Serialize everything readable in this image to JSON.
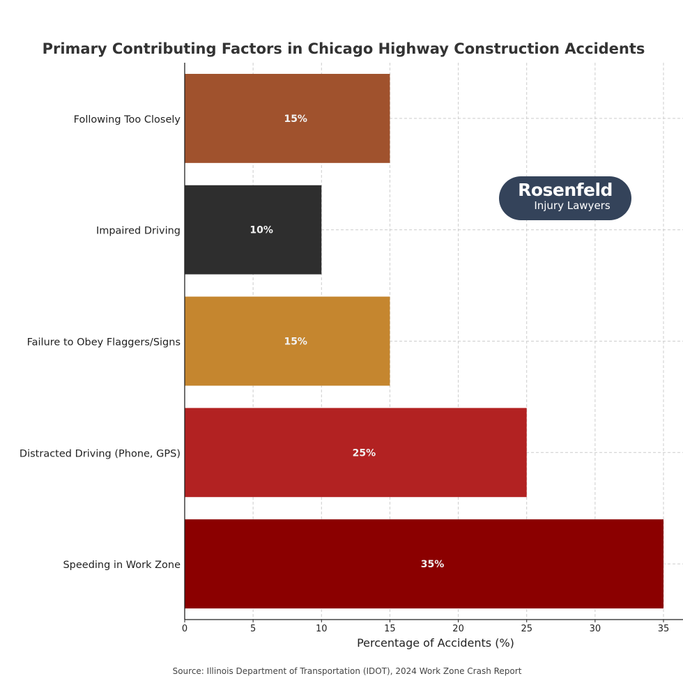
{
  "chart_data": {
    "type": "bar",
    "orientation": "horizontal",
    "title": "Primary Contributing Factors in Chicago Highway Construction Accidents",
    "xlabel": "Percentage of Accidents (%)",
    "ylabel": "",
    "categories": [
      "Following Too Closely",
      "Impaired Driving",
      "Failure to Obey Flaggers/Signs",
      "Distracted Driving (Phone, GPS)",
      "Speeding in Work Zone"
    ],
    "values": [
      15,
      10,
      15,
      25,
      35
    ],
    "data_labels": [
      "15%",
      "10%",
      "15%",
      "25%",
      "35%"
    ],
    "colors": [
      "#A0522D",
      "#2E2E2E",
      "#C5862F",
      "#B22222",
      "#8B0000"
    ],
    "xlim": [
      0,
      36.4
    ],
    "xticks": [
      0,
      5,
      10,
      15,
      20,
      25,
      30,
      35
    ],
    "grid": true,
    "source": "Source: Illinois Department of Transportation (IDOT), 2024 Work Zone Crash Report"
  },
  "logo": {
    "line1": "Rosenfeld",
    "line2": "Injury Lawyers",
    "color": "#34435A"
  }
}
